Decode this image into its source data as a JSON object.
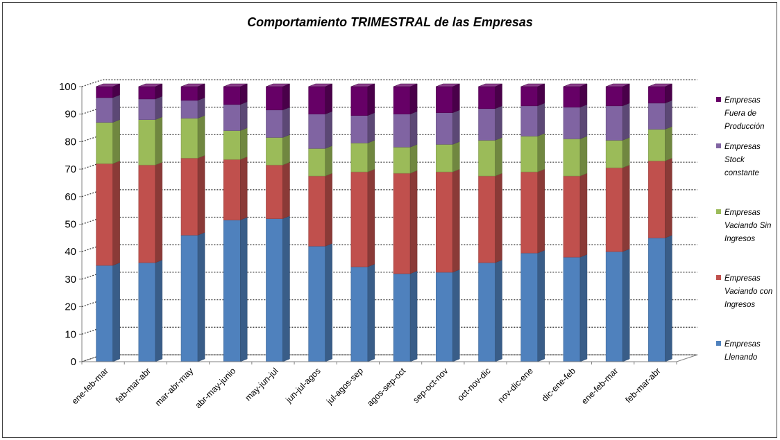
{
  "chart_data": {
    "type": "bar",
    "stacked": true,
    "three_d": true,
    "title": "Comportamiento TRIMESTRAL de las Empresas",
    "xlabel": "",
    "ylabel": "",
    "ylim": [
      0,
      100
    ],
    "yticks": [
      0,
      10,
      20,
      30,
      40,
      50,
      60,
      70,
      80,
      90,
      100
    ],
    "grid": true,
    "legend_position": "right",
    "categories": [
      "ene-feb-mar",
      "feb-mar-abr",
      "mar-abr-may",
      "abr-may-junio",
      "may-jun-jul",
      "jun-jul-agos",
      "jul-agos-sep",
      "agos-sep-oct",
      "sep-oct-nov",
      "oct-nov-dic",
      "nov-dic-ene",
      "dic-ene-feb",
      "ene-feb-mar",
      "feb-mar-abr"
    ],
    "series": [
      {
        "name": "Empresas Llenando",
        "legend_lines": [
          "Empresas",
          "Llenando"
        ],
        "color": "#4F81BD",
        "values": [
          35,
          36,
          46,
          51.5,
          52,
          42,
          34.5,
          32,
          32.5,
          36,
          39.5,
          38,
          40,
          45
        ]
      },
      {
        "name": "Empresas Vaciando con Ingresos",
        "legend_lines": [
          "Empresas",
          "Vaciando con",
          "Ingresos"
        ],
        "color": "#C0504D",
        "values": [
          37,
          35.5,
          28,
          22,
          19.5,
          25.5,
          34.5,
          36.5,
          36.5,
          31.5,
          29.5,
          29.5,
          30.5,
          28
        ]
      },
      {
        "name": "Empresas Vaciando Sin Ingresos",
        "legend_lines": [
          "Empresas",
          "Vaciando Sin",
          "Ingresos"
        ],
        "color": "#9BBB59",
        "values": [
          15,
          16.5,
          14.5,
          10.5,
          10,
          10,
          10.5,
          9.5,
          10,
          13,
          13,
          13.5,
          10,
          11.5
        ]
      },
      {
        "name": "Empresas Stock constante",
        "legend_lines": [
          "Empresas",
          "Stock",
          "constante"
        ],
        "color": "#8064A2",
        "values": [
          9,
          7.5,
          6.5,
          9.5,
          10,
          12.5,
          10,
          12,
          11.5,
          11.5,
          11,
          11.5,
          12.5,
          9.5
        ]
      },
      {
        "name": "Empresas Fuera de Producción",
        "legend_lines": [
          "Empresas",
          "Fuera de",
          "Producción"
        ],
        "color": "#660066",
        "values": [
          4,
          4.5,
          5,
          6.5,
          8.5,
          10,
          10.5,
          10,
          9.5,
          8,
          7,
          7.5,
          7,
          6
        ]
      }
    ]
  }
}
